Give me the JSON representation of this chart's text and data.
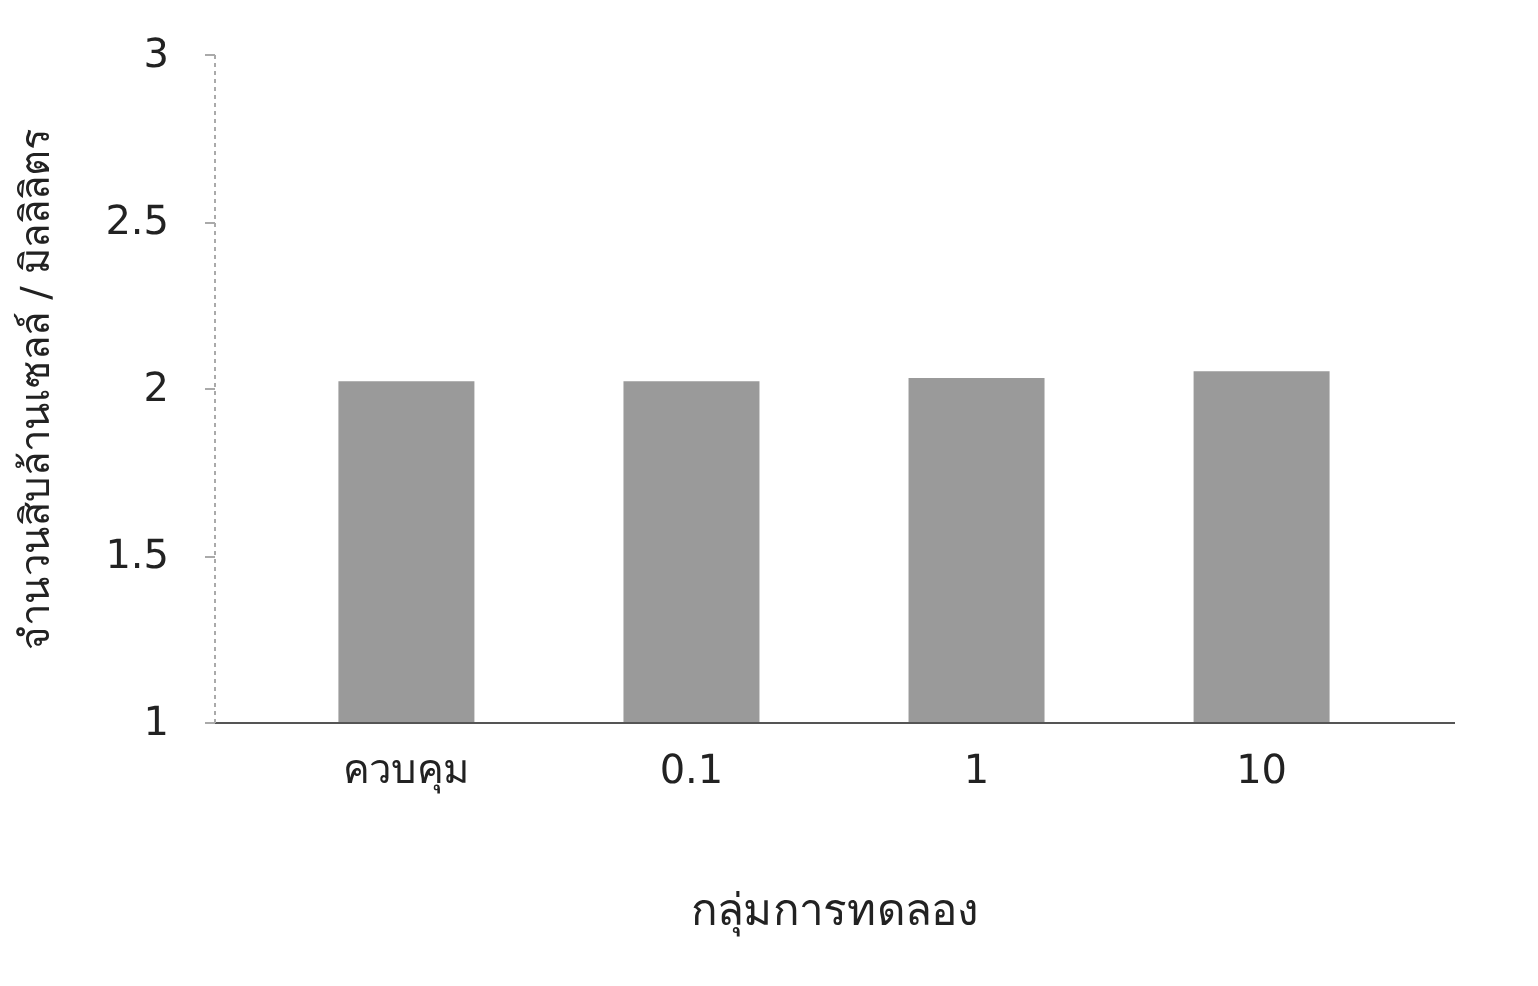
{
  "chart_data": {
    "type": "bar",
    "xlabel": "กลุ่มการทดลอง",
    "ylabel": "จำนวนสิบล้านเซลล์ / มิลลิลิตร",
    "categories": [
      "ควบคุม",
      "0.1",
      "1",
      "10"
    ],
    "values": [
      2.02,
      2.02,
      2.03,
      2.05
    ],
    "color": "#9a9a9a",
    "ylim": [
      1,
      3
    ],
    "yticks": [
      1,
      1.5,
      2,
      2.5,
      3
    ],
    "grid": false
  }
}
